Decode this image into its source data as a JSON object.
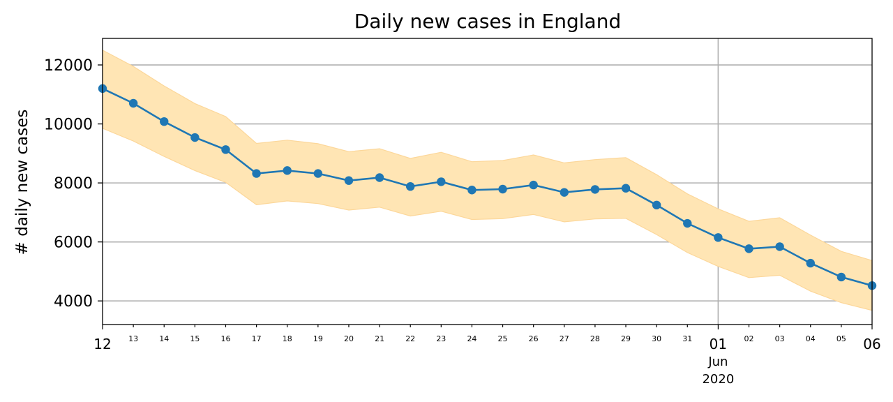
{
  "chart_data": {
    "type": "line",
    "title": "Daily new cases in England",
    "ylabel": "# daily new cases",
    "xlabel": "",
    "x": [
      "2020-05-12",
      "2020-05-13",
      "2020-05-14",
      "2020-05-15",
      "2020-05-16",
      "2020-05-17",
      "2020-05-18",
      "2020-05-19",
      "2020-05-20",
      "2020-05-21",
      "2020-05-22",
      "2020-05-23",
      "2020-05-24",
      "2020-05-25",
      "2020-05-26",
      "2020-05-27",
      "2020-05-28",
      "2020-05-29",
      "2020-05-30",
      "2020-05-31",
      "2020-06-01",
      "2020-06-02",
      "2020-06-03",
      "2020-06-04",
      "2020-06-05",
      "2020-06-06"
    ],
    "x_tick_labels": [
      "12",
      "13",
      "14",
      "15",
      "16",
      "17",
      "18",
      "19",
      "20",
      "21",
      "22",
      "23",
      "24",
      "25",
      "26",
      "27",
      "28",
      "29",
      "30",
      "31",
      "01",
      "02",
      "03",
      "04",
      "05",
      "06"
    ],
    "x_month_label": {
      "x": "2020-06-01",
      "month": "Jun",
      "year": "2020"
    },
    "ylim": [
      3200,
      12900
    ],
    "yticks": [
      4000,
      6000,
      8000,
      10000,
      12000
    ],
    "grid": true,
    "series": [
      {
        "values": [
          11200,
          10700,
          10080,
          9540,
          9130,
          8320,
          8420,
          8320,
          8080,
          8180,
          7880,
          8040,
          7760,
          7790,
          7930,
          7680,
          7780,
          7820,
          7250,
          6630,
          6150,
          5770,
          5840,
          5280,
          4810,
          4520
        ],
        "color": "#1f77b4",
        "marker": "circle"
      }
    ],
    "band": {
      "lower": [
        9850,
        9420,
        8900,
        8420,
        8020,
        7260,
        7390,
        7300,
        7080,
        7180,
        6880,
        7040,
        6760,
        6790,
        6930,
        6680,
        6780,
        6800,
        6250,
        5640,
        5170,
        4790,
        4870,
        4330,
        3940,
        3680
      ],
      "upper": [
        12500,
        11950,
        11290,
        10690,
        10250,
        9340,
        9450,
        9330,
        9060,
        9160,
        8830,
        9040,
        8720,
        8760,
        8950,
        8680,
        8790,
        8860,
        8280,
        7630,
        7120,
        6700,
        6820,
        6230,
        5680,
        5370
      ],
      "color": "#ffe5b4",
      "edge_color": "#fcd79a"
    }
  }
}
